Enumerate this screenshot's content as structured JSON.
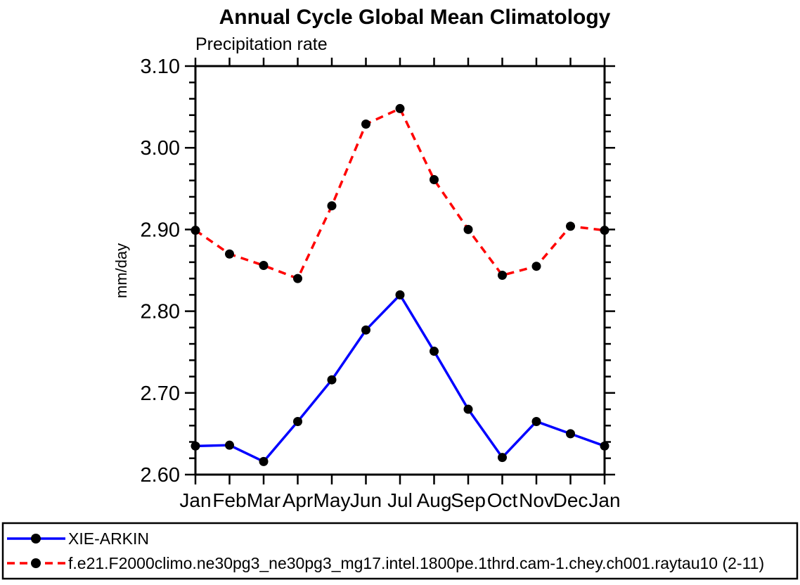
{
  "title": "Annual Cycle Global Mean Climatology",
  "chart_data": {
    "type": "line",
    "title": "Annual Cycle Global Mean Climatology",
    "subtitle": "Precipitation rate",
    "xlabel": "",
    "ylabel": "mm/day",
    "categories": [
      "Jan",
      "Feb",
      "Mar",
      "Apr",
      "May",
      "Jun",
      "Jul",
      "Aug",
      "Sep",
      "Oct",
      "Nov",
      "Dec",
      "Jan"
    ],
    "ylim": [
      2.6,
      3.1
    ],
    "ytick_major_interval": 0.1,
    "ytick_minor_interval": 0.02,
    "ytick_labels": [
      "2.60",
      "2.70",
      "2.80",
      "2.90",
      "3.00",
      "3.10"
    ],
    "grid": false,
    "legend_position": "bottom-left-box",
    "series": [
      {
        "name": "XIE-ARKIN",
        "color": "#0000ff",
        "line_style": "solid",
        "marker": "filled-circle",
        "marker_color": "#000000",
        "values": [
          2.635,
          2.636,
          2.616,
          2.665,
          2.716,
          2.777,
          2.82,
          2.751,
          2.68,
          2.621,
          2.665,
          2.65,
          2.635
        ]
      },
      {
        "name": "f.e21.F2000climo.ne30pg3_ne30pg3_mg17.intel.1800pe.1thrd.cam-1.chey.ch001.raytau10 (2-11)",
        "color": "#ff0000",
        "line_style": "dashed",
        "marker": "filled-circle",
        "marker_color": "#000000",
        "values": [
          2.899,
          2.87,
          2.856,
          2.84,
          2.929,
          3.029,
          3.048,
          2.961,
          2.9,
          2.844,
          2.855,
          2.904,
          2.899
        ]
      }
    ],
    "axis_color": "#000000",
    "background_color": "#ffffff"
  }
}
